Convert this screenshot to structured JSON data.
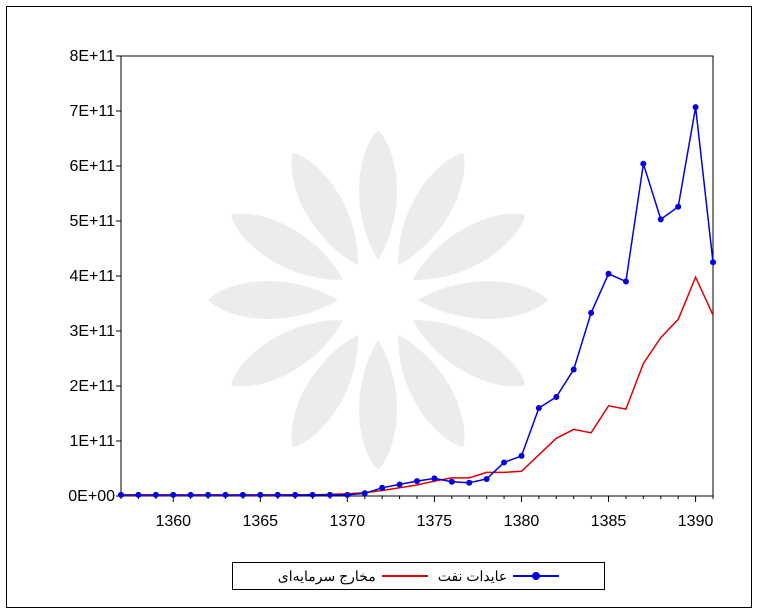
{
  "chart_data": {
    "type": "line",
    "x": [
      1357,
      1358,
      1359,
      1360,
      1361,
      1362,
      1363,
      1364,
      1365,
      1366,
      1367,
      1368,
      1369,
      1370,
      1371,
      1372,
      1373,
      1374,
      1375,
      1376,
      1377,
      1378,
      1379,
      1380,
      1381,
      1382,
      1383,
      1384,
      1385,
      1386,
      1387,
      1388,
      1389,
      1390,
      1391
    ],
    "series": [
      {
        "name": "عایدات نفت",
        "color": "#0000e0",
        "marker": "circle",
        "values": [
          0.002,
          0.002,
          0.002,
          0.002,
          0.002,
          0.002,
          0.002,
          0.002,
          0.002,
          0.002,
          0.002,
          0.002,
          0.002,
          0.002,
          0.005,
          0.015,
          0.021,
          0.027,
          0.032,
          0.026,
          0.024,
          0.031,
          0.061,
          0.073,
          0.16,
          0.18,
          0.23,
          0.333,
          0.404,
          0.39,
          0.604,
          0.503,
          0.526,
          0.707,
          0.425
        ]
      },
      {
        "name": "مخارج سرمایه‌ای",
        "color": "#e00000",
        "marker": "none",
        "values": [
          0.001,
          0.001,
          0.001,
          0.001,
          0.001,
          0.001,
          0.001,
          0.001,
          0.001,
          0.001,
          0.002,
          0.002,
          0.003,
          0.004,
          0.006,
          0.01,
          0.015,
          0.02,
          0.027,
          0.033,
          0.033,
          0.043,
          0.043,
          0.045,
          0.075,
          0.105,
          0.121,
          0.115,
          0.164,
          0.158,
          0.241,
          0.288,
          0.321,
          0.398,
          0.329
        ]
      }
    ],
    "y_scale_note": "values in units of 1E+12",
    "ylim": [
      0,
      0.8
    ],
    "xlim": [
      1357,
      1391
    ],
    "x_ticks": [
      1360,
      1365,
      1370,
      1375,
      1380,
      1385,
      1390
    ],
    "y_tick_labels": [
      "0E+00",
      "1E+11",
      "2E+11",
      "3E+11",
      "4E+11",
      "5E+11",
      "6E+11",
      "7E+11",
      "8E+11"
    ],
    "grid": false,
    "legend_position": "bottom-center"
  }
}
